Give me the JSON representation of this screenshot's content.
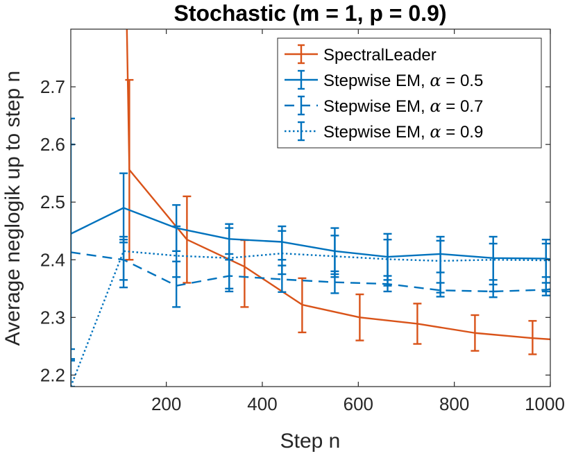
{
  "chart_data": {
    "type": "line",
    "title": "Stochastic (m = 1, p = 0.9)",
    "xlabel": "Step n",
    "ylabel": "Average neglogik up to step n",
    "xlim": [
      1,
      1000
    ],
    "ylim": [
      2.18,
      2.8
    ],
    "xticks": [
      200,
      400,
      600,
      800,
      1000
    ],
    "yticks": [
      2.2,
      2.3,
      2.4,
      2.5,
      2.6,
      2.7
    ],
    "grid": false,
    "legend_position": "top-right",
    "series": [
      {
        "name": "SpectralLeader",
        "color": "#d95319",
        "line_style": "solid",
        "x": [
          117,
          123,
          243,
          363,
          483,
          603,
          723,
          843,
          963,
          1000
        ],
        "y": [
          2.84,
          2.556,
          2.435,
          2.388,
          2.322,
          2.3,
          2.289,
          2.273,
          2.264,
          2.262
        ],
        "err_x": [
          123,
          243,
          363,
          483,
          603,
          723,
          843,
          963
        ],
        "err_lo": [
          2.4,
          2.36,
          2.318,
          2.274,
          2.26,
          2.254,
          2.242,
          2.236
        ],
        "err_hi": [
          2.712,
          2.51,
          2.434,
          2.368,
          2.34,
          2.324,
          2.304,
          2.294
        ]
      },
      {
        "name": "Stepwise EM, α = 0.5",
        "legend_prefix": "Stepwise EM, ",
        "legend_symbol": "α",
        "legend_suffix": " = 0.5",
        "color": "#0072bd",
        "line_style": "solid",
        "x": [
          1,
          111,
          221,
          331,
          441,
          551,
          661,
          771,
          881,
          991,
          1000
        ],
        "y": [
          2.445,
          2.49,
          2.455,
          2.436,
          2.431,
          2.415,
          2.405,
          2.41,
          2.403,
          2.402,
          2.401
        ],
        "err_x": [
          1,
          111,
          221,
          331,
          441,
          551,
          661,
          771,
          881,
          991
        ],
        "err_lo": [
          2.245,
          2.43,
          2.415,
          2.41,
          2.4,
          2.375,
          2.365,
          2.378,
          2.365,
          2.37
        ],
        "err_hi": [
          2.645,
          2.55,
          2.495,
          2.462,
          2.458,
          2.455,
          2.445,
          2.44,
          2.44,
          2.435
        ]
      },
      {
        "name": "Stepwise EM, α = 0.7",
        "legend_prefix": "Stepwise EM, ",
        "legend_symbol": "α",
        "legend_suffix": " = 0.7",
        "color": "#0072bd",
        "line_style": "dashed",
        "x": [
          1,
          111,
          221,
          331,
          441,
          551,
          661,
          771,
          881,
          991,
          1000
        ],
        "y": [
          2.413,
          2.4,
          2.355,
          2.372,
          2.366,
          2.361,
          2.358,
          2.347,
          2.345,
          2.348,
          2.349
        ],
        "err_x": [
          1,
          111,
          221,
          331,
          441,
          551,
          661,
          771,
          881,
          991
        ],
        "err_lo": [
          2.228,
          2.352,
          2.318,
          2.345,
          2.344,
          2.342,
          2.345,
          2.336,
          2.335,
          2.338
        ],
        "err_hi": [
          2.6,
          2.44,
          2.397,
          2.4,
          2.39,
          2.38,
          2.372,
          2.36,
          2.357,
          2.36
        ]
      },
      {
        "name": "Stepwise EM, α = 0.9",
        "legend_prefix": "Stepwise EM, ",
        "legend_symbol": "α",
        "legend_suffix": " = 0.9",
        "color": "#0072bd",
        "line_style": "dotted",
        "x": [
          1,
          111,
          221,
          331,
          441,
          551,
          661,
          771,
          881,
          991,
          1000
        ],
        "y": [
          2.18,
          2.415,
          2.407,
          2.403,
          2.411,
          2.406,
          2.401,
          2.398,
          2.4,
          2.399,
          2.399
        ],
        "err_x": [
          1,
          111,
          221,
          331,
          441,
          551,
          661,
          771,
          881,
          991
        ],
        "err_lo": [
          2.18,
          2.365,
          2.37,
          2.35,
          2.375,
          2.37,
          2.355,
          2.343,
          2.345,
          2.345
        ],
        "err_hi": [
          2.225,
          2.435,
          2.458,
          2.455,
          2.45,
          2.442,
          2.435,
          2.433,
          2.428,
          2.428
        ]
      }
    ]
  }
}
